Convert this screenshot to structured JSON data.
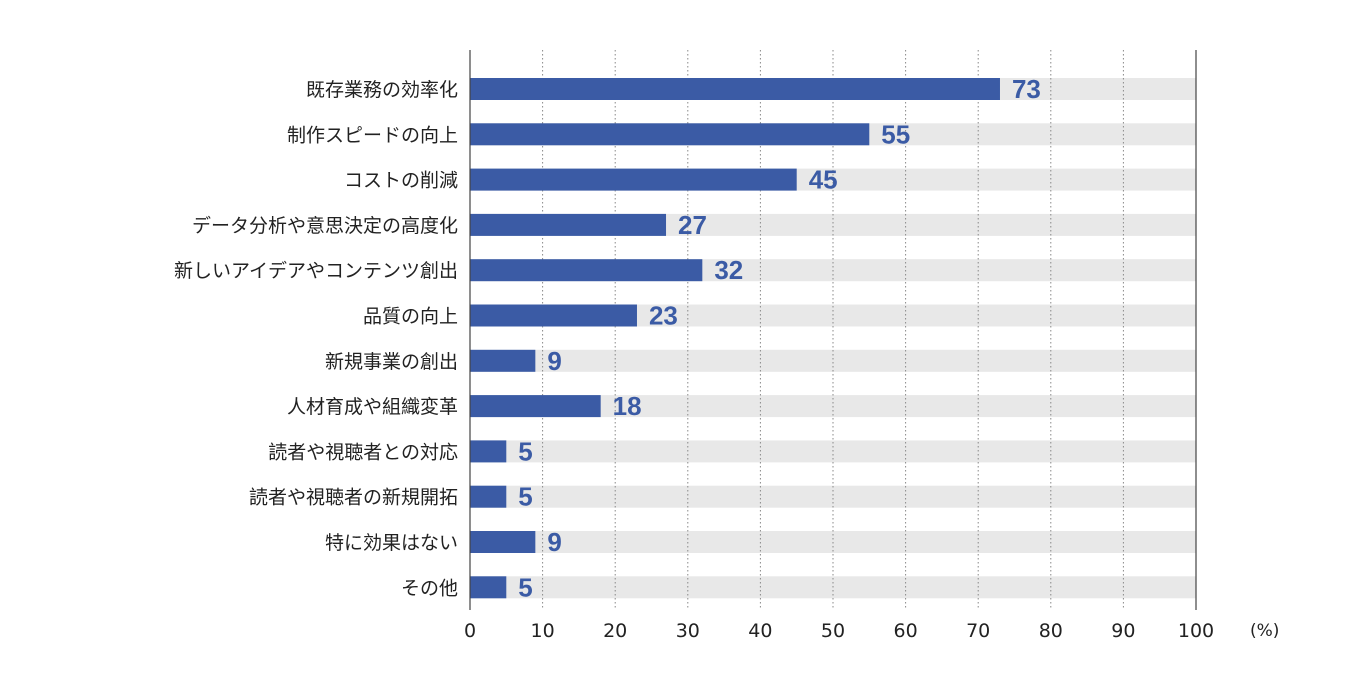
{
  "chart_data": {
    "type": "bar",
    "orientation": "horizontal",
    "categories": [
      "既存業務の効率化",
      "制作スピードの向上",
      "コストの削減",
      "データ分析や意思決定の高度化",
      "新しいアイデアやコンテンツ創出",
      "品質の向上",
      "新規事業の創出",
      "人材育成や組織変革",
      "読者や視聴者との対応",
      "読者や視聴者の新規開拓",
      "特に効果はない",
      "その他"
    ],
    "values": [
      73,
      55,
      45,
      27,
      32,
      23,
      9,
      18,
      5,
      5,
      9,
      5
    ],
    "x_ticks": [
      "0",
      "10",
      "20",
      "30",
      "40",
      "50",
      "60",
      "70",
      "80",
      "90",
      "100"
    ],
    "x_unit": "(%)",
    "xlim": [
      0,
      100
    ],
    "grid": "vertical dotted",
    "background_track": true,
    "colors": {
      "bar": "#3b5ba5",
      "track": "#e8e8e8",
      "label": "#3b5ba5",
      "grid": "#888888",
      "axis": "#444444"
    }
  }
}
